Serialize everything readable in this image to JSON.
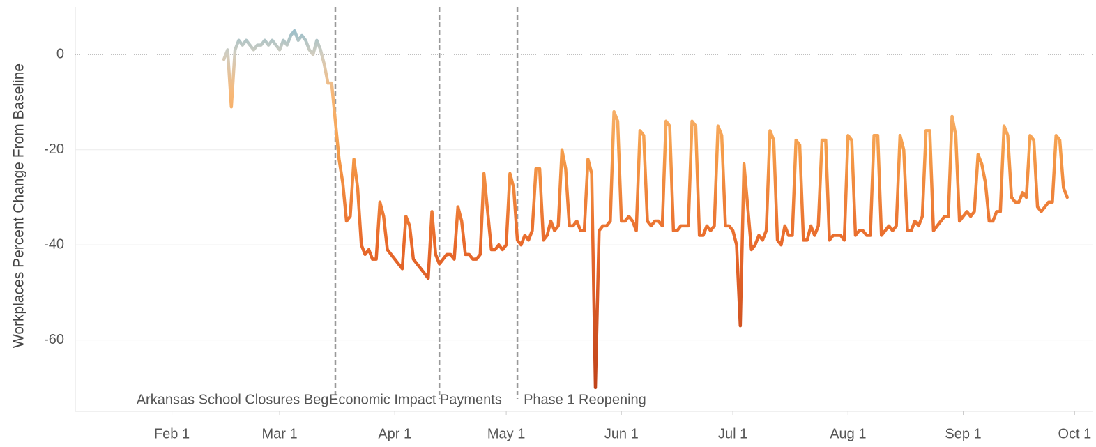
{
  "chart_data": {
    "type": "line",
    "y_label": "Workplaces Percent Change From Baseline",
    "x": [
      "Feb 15",
      "Feb 16",
      "Feb 17",
      "Feb 18",
      "Feb 19",
      "Feb 20",
      "Feb 21",
      "Feb 22",
      "Feb 23",
      "Feb 24",
      "Feb 25",
      "Feb 26",
      "Feb 27",
      "Feb 28",
      "Feb 29",
      "Mar 1",
      "Mar 2",
      "Mar 3",
      "Mar 4",
      "Mar 5",
      "Mar 6",
      "Mar 7",
      "Mar 8",
      "Mar 9",
      "Mar 10",
      "Mar 11",
      "Mar 12",
      "Mar 13",
      "Mar 14",
      "Mar 15",
      "Mar 16",
      "Mar 17",
      "Mar 18",
      "Mar 19",
      "Mar 20",
      "Mar 21",
      "Mar 22",
      "Mar 23",
      "Mar 24",
      "Mar 25",
      "Mar 26",
      "Mar 27",
      "Mar 28",
      "Mar 29",
      "Mar 30",
      "Mar 31",
      "Apr 1",
      "Apr 2",
      "Apr 3",
      "Apr 4",
      "Apr 5",
      "Apr 6",
      "Apr 7",
      "Apr 8",
      "Apr 9",
      "Apr 10",
      "Apr 11",
      "Apr 12",
      "Apr 13",
      "Apr 14",
      "Apr 15",
      "Apr 16",
      "Apr 17",
      "Apr 18",
      "Apr 19",
      "Apr 20",
      "Apr 21",
      "Apr 22",
      "Apr 23",
      "Apr 24",
      "Apr 25",
      "Apr 26",
      "Apr 27",
      "Apr 28",
      "Apr 29",
      "Apr 30",
      "May 1",
      "May 2",
      "May 3",
      "May 4",
      "May 5",
      "May 6",
      "May 7",
      "May 8",
      "May 9",
      "May 10",
      "May 11",
      "May 12",
      "May 13",
      "May 14",
      "May 15",
      "May 16",
      "May 17",
      "May 18",
      "May 19",
      "May 20",
      "May 21",
      "May 22",
      "May 23",
      "May 24",
      "May 25",
      "May 26",
      "May 27",
      "May 28",
      "May 29",
      "May 30",
      "May 31",
      "Jun 1",
      "Jun 2",
      "Jun 3",
      "Jun 4",
      "Jun 5",
      "Jun 6",
      "Jun 7",
      "Jun 8",
      "Jun 9",
      "Jun 10",
      "Jun 11",
      "Jun 12",
      "Jun 13",
      "Jun 14",
      "Jun 15",
      "Jun 16",
      "Jun 17",
      "Jun 18",
      "Jun 19",
      "Jun 20",
      "Jun 21",
      "Jun 22",
      "Jun 23",
      "Jun 24",
      "Jun 25",
      "Jun 26",
      "Jun 27",
      "Jun 28",
      "Jun 29",
      "Jun 30",
      "Jul 1",
      "Jul 2",
      "Jul 3",
      "Jul 4",
      "Jul 5",
      "Jul 6",
      "Jul 7",
      "Jul 8",
      "Jul 9",
      "Jul 10",
      "Jul 11",
      "Jul 12",
      "Jul 13",
      "Jul 14",
      "Jul 15",
      "Jul 16",
      "Jul 17",
      "Jul 18",
      "Jul 19",
      "Jul 20",
      "Jul 21",
      "Jul 22",
      "Jul 23",
      "Jul 24",
      "Jul 25",
      "Jul 26",
      "Jul 27",
      "Jul 28",
      "Jul 29",
      "Jul 30",
      "Jul 31",
      "Aug 1",
      "Aug 2",
      "Aug 3",
      "Aug 4",
      "Aug 5",
      "Aug 6",
      "Aug 7",
      "Aug 8",
      "Aug 9",
      "Aug 10",
      "Aug 11",
      "Aug 12",
      "Aug 13",
      "Aug 14",
      "Aug 15",
      "Aug 16",
      "Aug 17",
      "Aug 18",
      "Aug 19",
      "Aug 20",
      "Aug 21",
      "Aug 22",
      "Aug 23",
      "Aug 24",
      "Aug 25",
      "Aug 26",
      "Aug 27",
      "Aug 28",
      "Aug 29",
      "Aug 30",
      "Aug 31",
      "Sep 1",
      "Sep 2",
      "Sep 3",
      "Sep 4",
      "Sep 5",
      "Sep 6",
      "Sep 7",
      "Sep 8",
      "Sep 9",
      "Sep 10",
      "Sep 11",
      "Sep 12",
      "Sep 13",
      "Sep 14",
      "Sep 15",
      "Sep 16",
      "Sep 17",
      "Sep 18",
      "Sep 19",
      "Sep 20",
      "Sep 21",
      "Sep 22",
      "Sep 23",
      "Sep 24",
      "Sep 25",
      "Sep 26",
      "Sep 27",
      "Sep 28",
      "Sep 29"
    ],
    "values": [
      -1,
      1,
      -11,
      1,
      3,
      2,
      3,
      2,
      1,
      2,
      2,
      3,
      2,
      3,
      2,
      1,
      3,
      2,
      4,
      5,
      3,
      4,
      3,
      1,
      0,
      3,
      1,
      -2,
      -6,
      -6,
      -14,
      -22,
      -27,
      -35,
      -34,
      -22,
      -28,
      -40,
      -42,
      -41,
      -43,
      -43,
      -31,
      -34,
      -41,
      -42,
      -43,
      -44,
      -45,
      -34,
      -36,
      -43,
      -44,
      -45,
      -46,
      -47,
      -33,
      -42,
      -44,
      -43,
      -42,
      -42,
      -43,
      -32,
      -35,
      -42,
      -42,
      -43,
      -43,
      -42,
      -25,
      -33,
      -41,
      -41,
      -40,
      -41,
      -40,
      -25,
      -28,
      -39,
      -40,
      -38,
      -39,
      -37,
      -24,
      -24,
      -39,
      -38,
      -35,
      -37,
      -36,
      -20,
      -24,
      -36,
      -36,
      -35,
      -37,
      -37,
      -22,
      -25,
      -70,
      -37,
      -36,
      -36,
      -35,
      -12,
      -14,
      -35,
      -35,
      -34,
      -35,
      -37,
      -16,
      -17,
      -35,
      -36,
      -35,
      -35,
      -36,
      -14,
      -15,
      -37,
      -37,
      -36,
      -36,
      -36,
      -14,
      -15,
      -38,
      -38,
      -36,
      -37,
      -36,
      -15,
      -17,
      -36,
      -36,
      -37,
      -40,
      -57,
      -23,
      -32,
      -41,
      -40,
      -38,
      -39,
      -37,
      -16,
      -18,
      -39,
      -40,
      -36,
      -38,
      -38,
      -18,
      -19,
      -39,
      -39,
      -36,
      -38,
      -36,
      -18,
      -18,
      -39,
      -38,
      -38,
      -38,
      -39,
      -17,
      -18,
      -38,
      -37,
      -37,
      -38,
      -38,
      -17,
      -17,
      -38,
      -37,
      -36,
      -37,
      -36,
      -17,
      -20,
      -37,
      -37,
      -35,
      -36,
      -34,
      -16,
      -16,
      -37,
      -36,
      -35,
      -34,
      -34,
      -13,
      -17,
      -35,
      -34,
      -33,
      -34,
      -33,
      -21,
      -23,
      -27,
      -35,
      -35,
      -33,
      -33,
      -15,
      -17,
      -30,
      -31,
      -31,
      -29,
      -30,
      -17,
      -18,
      -32,
      -33,
      -32,
      -31,
      -31,
      -17,
      -18,
      -28,
      -30
    ],
    "color_stops": [
      {
        "value": 5,
        "color": "#9cbfca"
      },
      {
        "value": 0,
        "color": "#d2cdbf"
      },
      {
        "value": -8,
        "color": "#f7b878"
      },
      {
        "value": -20,
        "color": "#f59d4a"
      },
      {
        "value": -40,
        "color": "#e8692b"
      },
      {
        "value": -70,
        "color": "#c0431a"
      }
    ],
    "xlim": [
      "Jan 6",
      "Oct 6"
    ],
    "xticks": [
      "Feb 1",
      "Mar 1",
      "Apr 1",
      "May 1",
      "Jun 1",
      "Jul 1",
      "Aug 1",
      "Sep 1",
      "Oct 1"
    ],
    "ylim": [
      -75,
      10
    ],
    "yticks": [
      0,
      -20,
      -40,
      -60
    ],
    "grid": true,
    "annotations": [
      {
        "x": "Mar 16",
        "label": "Arkansas School Closures Begin"
      },
      {
        "x": "Apr 13",
        "label": "Economic Impact Payments"
      },
      {
        "x": "May 4",
        "label": "Phase 1 Reopening"
      }
    ]
  }
}
